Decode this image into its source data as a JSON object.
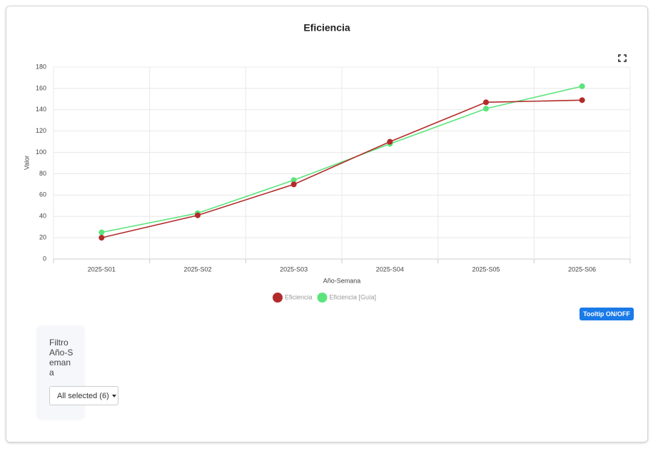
{
  "chart_data": {
    "type": "line",
    "title": "Eficiencia",
    "x_label": "Año-Semana",
    "y_label": "Valor",
    "categories": [
      "2025-S01",
      "2025-S02",
      "2025-S03",
      "2025-S04",
      "2025-S05",
      "2025-S06"
    ],
    "series": [
      {
        "name": "Eficiencia",
        "color": "#b22b2b",
        "values": [
          20,
          41,
          70,
          110,
          147,
          149
        ]
      },
      {
        "name": "Eficiencia [Guía]",
        "color": "#5ce47c",
        "values": [
          25,
          43,
          74,
          108,
          141,
          162
        ]
      }
    ],
    "ylim": [
      0,
      180
    ],
    "yticks": [
      0,
      20,
      40,
      60,
      80,
      100,
      120,
      140,
      160,
      180
    ],
    "grid": true,
    "legend": "bottom"
  },
  "tooltip_button": "Tooltip ON/OFF",
  "filter": {
    "label": "Filtro Año-Semana",
    "dropdown": "All selected (6)"
  }
}
